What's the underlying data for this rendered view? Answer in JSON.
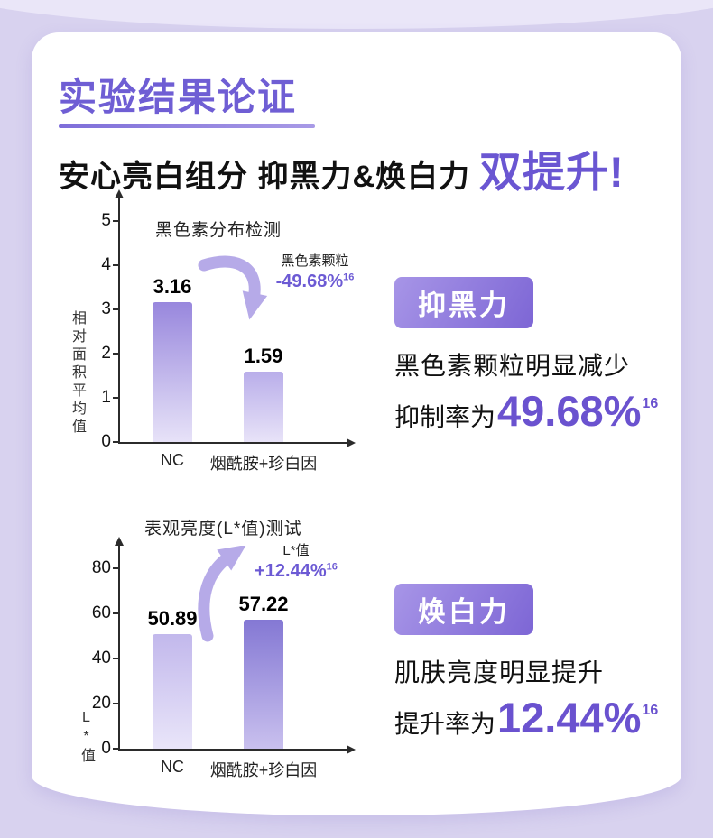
{
  "header": {
    "title": "实验结果论证",
    "subtitle_main": "安心亮白组分 抑黑力&焕白力",
    "subtitle_highlight": "双提升!"
  },
  "colors": {
    "accent_purple": "#6a56d2",
    "badge_gradient_start": "#a795e7",
    "badge_gradient_end": "#7d66d5",
    "background_lavender": "#d8d2ef",
    "bar_dark_purple": "#8478d4",
    "bar_light_purple": "#b9aeea"
  },
  "chart_data": [
    {
      "type": "bar",
      "title": "黑色素分布检测",
      "ylabel": "相对面积平均值",
      "xlabel": "",
      "categories": [
        "NC",
        "烟酰胺+珍白因"
      ],
      "values": [
        3.16,
        1.59
      ],
      "ylim": [
        0,
        5
      ],
      "yticks": [
        0,
        1,
        2,
        3,
        4,
        5
      ],
      "grid": false,
      "annotation": {
        "label": "黑色素颗粒",
        "value": "-49.68%",
        "superscript": "16",
        "direction": "down"
      }
    },
    {
      "type": "bar",
      "title": "表观亮度(L*值)测试",
      "ylabel": "L*值",
      "xlabel": "",
      "categories": [
        "NC",
        "烟酰胺+珍白因"
      ],
      "values": [
        50.89,
        57.22
      ],
      "ylim": [
        0,
        80
      ],
      "yticks": [
        0,
        20,
        40,
        60,
        80
      ],
      "grid": false,
      "annotation": {
        "label": "L*值",
        "value": "+12.44%",
        "superscript": "16",
        "direction": "up"
      }
    }
  ],
  "results": [
    {
      "badge": "抑黑力",
      "line1": "黑色素颗粒明显减少",
      "line2_prefix": "抑制率为",
      "line2_value": "49.68%",
      "superscript": "16"
    },
    {
      "badge": "焕白力",
      "line1": "肌肤亮度明显提升",
      "line2_prefix": "提升率为",
      "line2_value": "12.44%",
      "superscript": "16"
    }
  ]
}
